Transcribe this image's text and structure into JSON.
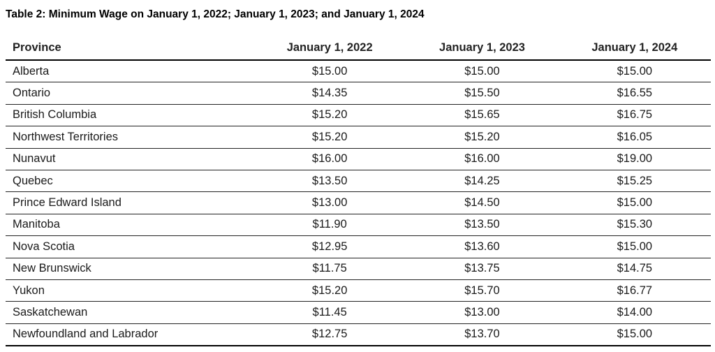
{
  "title": "Table 2: Minimum Wage on January 1, 2022; January 1, 2023; and January 1, 2024",
  "table": {
    "header": [
      "Province",
      "January 1, 2022",
      "January 1, 2023",
      "January 1, 2024"
    ],
    "rows": [
      [
        "Alberta",
        "$15.00",
        "$15.00",
        "$15.00"
      ],
      [
        "Ontario",
        "$14.35",
        "$15.50",
        "$16.55"
      ],
      [
        "British Columbia",
        "$15.20",
        "$15.65",
        "$16.75"
      ],
      [
        "Northwest Territories",
        "$15.20",
        "$15.20",
        "$16.05"
      ],
      [
        "Nunavut",
        "$16.00",
        "$16.00",
        "$19.00"
      ],
      [
        "Quebec",
        "$13.50",
        "$14.25",
        "$15.25"
      ],
      [
        "Prince Edward Island",
        "$13.00",
        "$14.50",
        "$15.00"
      ],
      [
        "Manitoba",
        "$11.90",
        "$13.50",
        "$15.30"
      ],
      [
        "Nova Scotia",
        "$12.95",
        "$13.60",
        "$15.00"
      ],
      [
        "New Brunswick",
        "$11.75",
        "$13.75",
        "$14.75"
      ],
      [
        "Yukon",
        "$15.20",
        "$15.70",
        "$16.77"
      ],
      [
        "Saskatchewan",
        "$11.45",
        "$13.00",
        "$14.00"
      ],
      [
        "Newfoundland and Labrador",
        "$12.75",
        "$13.70",
        "$15.00"
      ]
    ]
  }
}
